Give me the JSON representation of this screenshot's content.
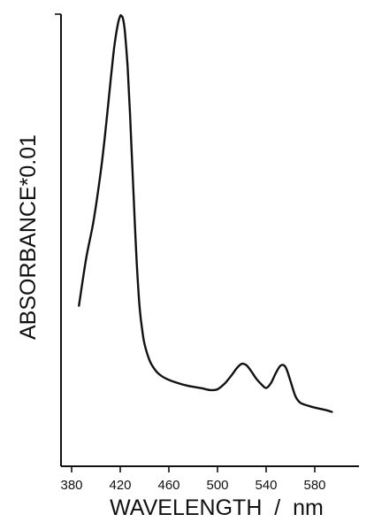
{
  "chart_data": {
    "type": "line",
    "title": "",
    "xlabel": "WAVELENGTH  /  nm",
    "ylabel": "ABSORBANCE*0.01",
    "xlim": [
      380,
      600
    ],
    "xticks": [
      380,
      420,
      460,
      500,
      540,
      580
    ],
    "ylim": [
      0,
      1.0
    ],
    "grid": false,
    "legend": "none",
    "series": [
      {
        "x": [
          386,
          392,
          398,
          404,
          408,
          412,
          415,
          418,
          420,
          421,
          422,
          423,
          424,
          426,
          428,
          430,
          432,
          434,
          436,
          438,
          440,
          444,
          448,
          452,
          458,
          466,
          476,
          486,
          494,
          500,
          506,
          512,
          516,
          520,
          524,
          528,
          532,
          536,
          540,
          544,
          548,
          552,
          556,
          560,
          564,
          568,
          574,
          580,
          588,
          594
        ],
        "values": [
          0.306,
          0.42,
          0.509,
          0.628,
          0.729,
          0.843,
          0.924,
          0.98,
          1.0,
          1.0,
          0.996,
          0.982,
          0.957,
          0.88,
          0.768,
          0.633,
          0.503,
          0.385,
          0.3,
          0.249,
          0.214,
          0.176,
          0.155,
          0.142,
          0.131,
          0.122,
          0.114,
          0.109,
          0.104,
          0.106,
          0.12,
          0.141,
          0.157,
          0.167,
          0.163,
          0.148,
          0.131,
          0.118,
          0.109,
          0.121,
          0.145,
          0.163,
          0.159,
          0.126,
          0.09,
          0.074,
          0.067,
          0.062,
          0.057,
          0.052
        ]
      }
    ]
  }
}
